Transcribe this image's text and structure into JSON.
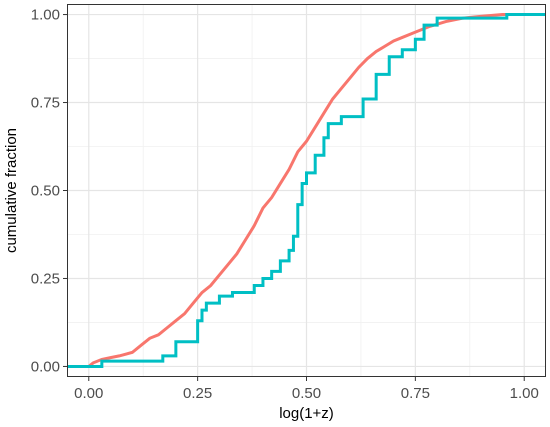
{
  "chart_data": {
    "type": "line",
    "line_shape": "step",
    "xlabel": "log(1+z)",
    "ylabel": "cumulative fraction",
    "xlim": [
      -0.05,
      1.05
    ],
    "ylim": [
      -0.03,
      1.03
    ],
    "x_ticks": [
      0.0,
      0.25,
      0.5,
      0.75,
      1.0
    ],
    "x_tick_labels": [
      "0.00",
      "0.25",
      "0.50",
      "0.75",
      "1.00"
    ],
    "y_ticks": [
      0.0,
      0.25,
      0.5,
      0.75,
      1.0
    ],
    "y_tick_labels": [
      "0.00",
      "0.25",
      "0.50",
      "0.75",
      "1.00"
    ],
    "grid": true,
    "legend": "none",
    "series": [
      {
        "color": "#F8766D",
        "points": [
          [
            -0.05,
            0.0
          ],
          [
            0.0,
            0.0
          ],
          [
            0.01,
            0.01
          ],
          [
            0.03,
            0.02
          ],
          [
            0.05,
            0.025
          ],
          [
            0.07,
            0.03
          ],
          [
            0.1,
            0.04
          ],
          [
            0.12,
            0.06
          ],
          [
            0.14,
            0.08
          ],
          [
            0.16,
            0.09
          ],
          [
            0.18,
            0.11
          ],
          [
            0.2,
            0.13
          ],
          [
            0.22,
            0.15
          ],
          [
            0.24,
            0.18
          ],
          [
            0.26,
            0.21
          ],
          [
            0.28,
            0.23
          ],
          [
            0.3,
            0.26
          ],
          [
            0.32,
            0.29
          ],
          [
            0.34,
            0.32
          ],
          [
            0.36,
            0.36
          ],
          [
            0.38,
            0.4
          ],
          [
            0.4,
            0.45
          ],
          [
            0.42,
            0.48
          ],
          [
            0.44,
            0.52
          ],
          [
            0.46,
            0.56
          ],
          [
            0.48,
            0.61
          ],
          [
            0.5,
            0.64
          ],
          [
            0.52,
            0.68
          ],
          [
            0.54,
            0.72
          ],
          [
            0.56,
            0.76
          ],
          [
            0.58,
            0.79
          ],
          [
            0.6,
            0.82
          ],
          [
            0.62,
            0.85
          ],
          [
            0.64,
            0.875
          ],
          [
            0.66,
            0.895
          ],
          [
            0.68,
            0.91
          ],
          [
            0.7,
            0.925
          ],
          [
            0.72,
            0.935
          ],
          [
            0.75,
            0.95
          ],
          [
            0.78,
            0.965
          ],
          [
            0.82,
            0.98
          ],
          [
            0.86,
            0.99
          ],
          [
            0.9,
            0.995
          ],
          [
            0.95,
            1.0
          ],
          [
            1.05,
            1.0
          ]
        ]
      },
      {
        "color": "#00BFC4",
        "points": [
          [
            -0.05,
            0.0
          ],
          [
            0.03,
            0.0
          ],
          [
            0.03,
            0.015
          ],
          [
            0.17,
            0.015
          ],
          [
            0.17,
            0.03
          ],
          [
            0.2,
            0.03
          ],
          [
            0.2,
            0.07
          ],
          [
            0.25,
            0.07
          ],
          [
            0.25,
            0.13
          ],
          [
            0.26,
            0.13
          ],
          [
            0.26,
            0.16
          ],
          [
            0.27,
            0.16
          ],
          [
            0.27,
            0.18
          ],
          [
            0.3,
            0.18
          ],
          [
            0.3,
            0.2
          ],
          [
            0.33,
            0.2
          ],
          [
            0.33,
            0.21
          ],
          [
            0.38,
            0.21
          ],
          [
            0.38,
            0.23
          ],
          [
            0.4,
            0.23
          ],
          [
            0.4,
            0.25
          ],
          [
            0.42,
            0.25
          ],
          [
            0.42,
            0.27
          ],
          [
            0.44,
            0.27
          ],
          [
            0.44,
            0.3
          ],
          [
            0.46,
            0.3
          ],
          [
            0.46,
            0.33
          ],
          [
            0.47,
            0.33
          ],
          [
            0.47,
            0.37
          ],
          [
            0.48,
            0.37
          ],
          [
            0.48,
            0.46
          ],
          [
            0.49,
            0.46
          ],
          [
            0.49,
            0.52
          ],
          [
            0.5,
            0.52
          ],
          [
            0.5,
            0.55
          ],
          [
            0.52,
            0.55
          ],
          [
            0.52,
            0.6
          ],
          [
            0.54,
            0.6
          ],
          [
            0.54,
            0.65
          ],
          [
            0.55,
            0.65
          ],
          [
            0.55,
            0.69
          ],
          [
            0.58,
            0.69
          ],
          [
            0.58,
            0.71
          ],
          [
            0.63,
            0.71
          ],
          [
            0.63,
            0.76
          ],
          [
            0.66,
            0.76
          ],
          [
            0.66,
            0.83
          ],
          [
            0.69,
            0.83
          ],
          [
            0.69,
            0.88
          ],
          [
            0.72,
            0.88
          ],
          [
            0.72,
            0.9
          ],
          [
            0.75,
            0.9
          ],
          [
            0.75,
            0.93
          ],
          [
            0.77,
            0.93
          ],
          [
            0.77,
            0.97
          ],
          [
            0.8,
            0.97
          ],
          [
            0.8,
            0.99
          ],
          [
            0.96,
            0.99
          ],
          [
            0.96,
            1.0
          ],
          [
            1.05,
            1.0
          ]
        ]
      }
    ]
  }
}
